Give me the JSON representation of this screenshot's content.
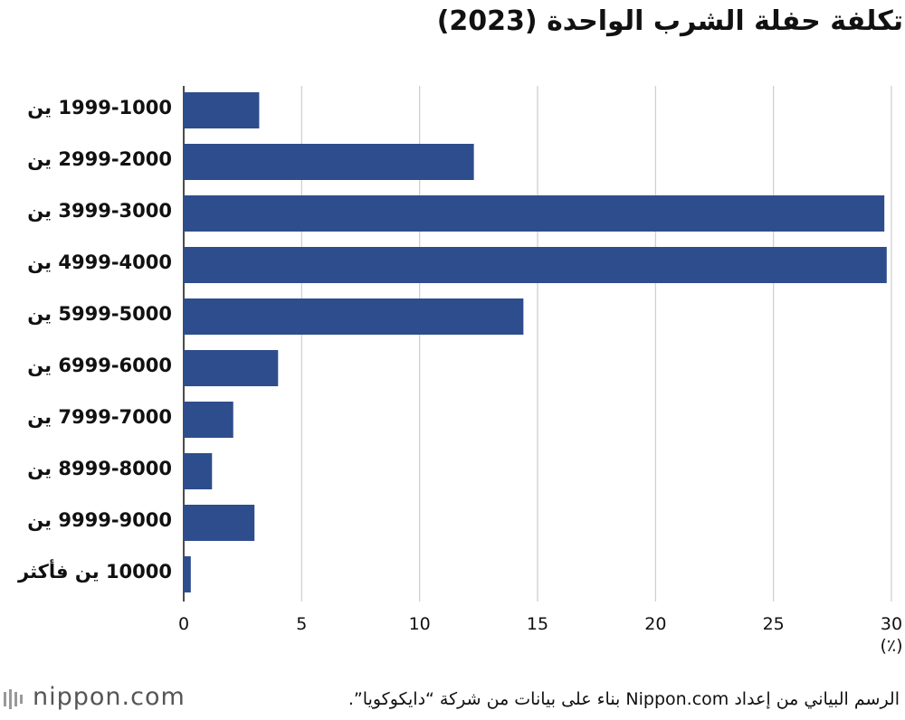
{
  "chart_data": {
    "type": "bar",
    "orientation": "horizontal",
    "title": "تكلفة حفلة الشرب الواحدة (2023)",
    "categories": [
      "1999-1000 ين",
      "2999-2000 ين",
      "3999-3000 ين",
      "4999-4000 ين",
      "5999-5000 ين",
      "6999-6000 ين",
      "7999-7000 ين",
      "8999-8000 ين",
      "9999-9000 ين",
      "10000 ين فأكثر"
    ],
    "values": [
      3.2,
      12.3,
      29.7,
      29.8,
      14.4,
      4.0,
      2.1,
      1.2,
      3.0,
      0.3
    ],
    "color": "#2e4d8c",
    "xlim": [
      0,
      30
    ],
    "xticks": [
      0,
      5,
      10,
      15,
      20,
      25,
      30
    ],
    "grid": true,
    "x_unit": "(٪)",
    "source": "الرسم البياني من إعداد Nippon.com بناء على بيانات من شركة “دايكوكويا”."
  },
  "logo": "nippon.com"
}
